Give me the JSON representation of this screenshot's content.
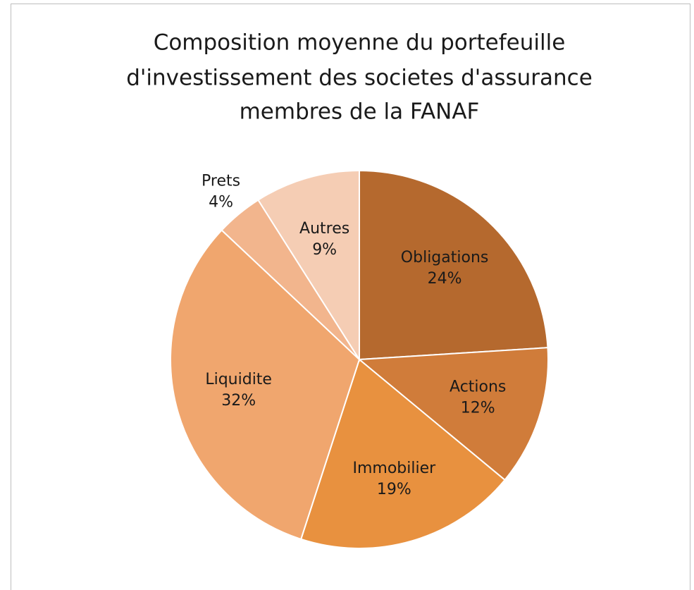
{
  "chart_data": {
    "type": "pie",
    "title": [
      "Composition moyenne du portefeuille",
      "d'investissement des societes d'assurance",
      "membres de la FANAF"
    ],
    "categories": [
      "Obligations",
      "Actions",
      "Immobilier",
      "Liquidite",
      "Prets",
      "Autres"
    ],
    "values": [
      24,
      12,
      19,
      32,
      4,
      9
    ],
    "value_labels": [
      "24%",
      "12%",
      "19%",
      "32%",
      "4%",
      "9%"
    ],
    "colors": [
      "#b5692e",
      "#d07c3a",
      "#e8913f",
      "#f0a66e",
      "#f2b58d",
      "#f5cdb4"
    ]
  }
}
